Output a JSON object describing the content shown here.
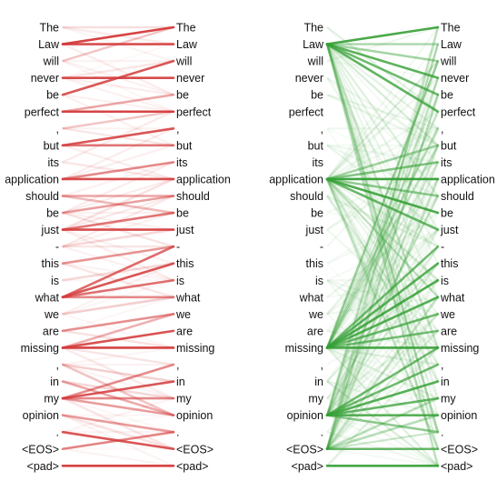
{
  "tokens": [
    "The",
    "Law",
    "will",
    "never",
    "be",
    "perfect",
    ",",
    "but",
    "its",
    "application",
    "should",
    "be",
    "just",
    "-",
    "this",
    "is",
    "what",
    "we",
    "are",
    "missing",
    ",",
    "in",
    "my",
    "opinion",
    ".",
    "<EOS>",
    "<pad>"
  ],
  "panels": [
    {
      "id": "red",
      "color": "#d43a3a",
      "edges": [
        [
          1,
          0,
          0.95
        ],
        [
          1,
          1,
          0.9
        ],
        [
          4,
          2,
          0.85
        ],
        [
          3,
          3,
          0.9
        ],
        [
          5,
          5,
          0.95
        ],
        [
          5,
          4,
          0.4
        ],
        [
          7,
          6,
          0.85
        ],
        [
          7,
          7,
          0.7
        ],
        [
          9,
          8,
          0.6
        ],
        [
          9,
          9,
          0.9
        ],
        [
          10,
          10,
          0.45
        ],
        [
          12,
          11,
          0.7
        ],
        [
          12,
          12,
          0.9
        ],
        [
          14,
          13,
          0.5
        ],
        [
          16,
          13,
          0.75
        ],
        [
          16,
          14,
          0.85
        ],
        [
          16,
          15,
          0.7
        ],
        [
          16,
          16,
          0.6
        ],
        [
          18,
          17,
          0.55
        ],
        [
          19,
          18,
          0.85
        ],
        [
          19,
          19,
          0.95
        ],
        [
          19,
          17,
          0.4
        ],
        [
          22,
          20,
          0.55
        ],
        [
          22,
          21,
          0.85
        ],
        [
          22,
          22,
          0.6
        ],
        [
          22,
          23,
          0.5
        ],
        [
          21,
          23,
          0.4
        ],
        [
          20,
          23,
          0.3
        ],
        [
          23,
          24,
          0.5
        ],
        [
          24,
          25,
          0.85
        ],
        [
          25,
          24,
          0.6
        ],
        [
          26,
          26,
          0.95
        ],
        [
          2,
          0,
          0.12
        ],
        [
          6,
          5,
          0.15
        ],
        [
          11,
          10,
          0.4
        ],
        [
          13,
          12,
          0.2
        ],
        [
          15,
          14,
          0.2
        ],
        [
          17,
          16,
          0.25
        ],
        [
          0,
          1,
          0.1
        ],
        [
          8,
          9,
          0.12
        ],
        [
          10,
          11,
          0.35
        ],
        [
          18,
          19,
          0.15
        ],
        [
          21,
          22,
          0.2
        ],
        [
          20,
          21,
          0.18
        ],
        [
          23,
          25,
          0.15
        ],
        [
          14,
          16,
          0.12
        ],
        [
          3,
          2,
          0.12
        ],
        [
          12,
          9,
          0.15
        ],
        [
          22,
          25,
          0.12
        ],
        [
          19,
          22,
          0.1
        ]
      ]
    },
    {
      "id": "green",
      "color": "#35a035",
      "hubs": [
        1,
        9,
        19,
        23,
        25
      ],
      "edges": [
        [
          1,
          0,
          0.9
        ],
        [
          1,
          1,
          0.35
        ],
        [
          1,
          3,
          0.8
        ],
        [
          1,
          4,
          0.7
        ],
        [
          1,
          5,
          0.75
        ],
        [
          1,
          2,
          0.35
        ],
        [
          9,
          8,
          0.55
        ],
        [
          9,
          9,
          0.95
        ],
        [
          9,
          10,
          0.45
        ],
        [
          9,
          11,
          0.85
        ],
        [
          9,
          12,
          0.75
        ],
        [
          9,
          7,
          0.4
        ],
        [
          19,
          13,
          0.65
        ],
        [
          19,
          14,
          0.8
        ],
        [
          19,
          15,
          0.85
        ],
        [
          19,
          16,
          0.8
        ],
        [
          19,
          17,
          0.7
        ],
        [
          19,
          18,
          0.55
        ],
        [
          19,
          19,
          0.9
        ],
        [
          19,
          6,
          0.35
        ],
        [
          19,
          7,
          0.3
        ],
        [
          23,
          19,
          0.7
        ],
        [
          23,
          20,
          0.65
        ],
        [
          23,
          21,
          0.8
        ],
        [
          23,
          22,
          0.75
        ],
        [
          23,
          23,
          0.8
        ],
        [
          23,
          24,
          0.45
        ],
        [
          25,
          25,
          0.7
        ],
        [
          25,
          23,
          0.35
        ],
        [
          25,
          22,
          0.3
        ],
        [
          26,
          26,
          0.9
        ],
        [
          1,
          24,
          0.3
        ],
        [
          1,
          26,
          0.25
        ],
        [
          9,
          25,
          0.25
        ],
        [
          25,
          0,
          0.25
        ],
        [
          25,
          4,
          0.3
        ],
        [
          25,
          9,
          0.25
        ],
        [
          19,
          2,
          0.2
        ],
        [
          23,
          10,
          0.2
        ],
        [
          9,
          15,
          0.2
        ],
        [
          1,
          19,
          0.2
        ],
        [
          25,
          16,
          0.2
        ]
      ]
    }
  ]
}
